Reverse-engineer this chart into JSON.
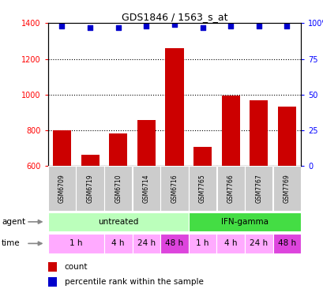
{
  "title": "GDS1846 / 1563_s_at",
  "samples": [
    "GSM6709",
    "GSM6719",
    "GSM6710",
    "GSM6714",
    "GSM6716",
    "GSM7765",
    "GSM7766",
    "GSM7767",
    "GSM7769"
  ],
  "counts": [
    800,
    665,
    785,
    860,
    1262,
    710,
    993,
    970,
    935
  ],
  "percentiles": [
    98,
    97,
    97,
    98,
    99,
    97,
    98,
    98,
    98
  ],
  "ymin": 600,
  "ymax": 1400,
  "y2min": 0,
  "y2max": 100,
  "yticks": [
    600,
    800,
    1000,
    1200,
    1400
  ],
  "y2ticks": [
    0,
    25,
    50,
    75,
    100
  ],
  "bar_color": "#cc0000",
  "dot_color": "#0000cc",
  "agent_untreated_color_light": "#bbffbb",
  "agent_untreated_color": "#bbffbb",
  "agent_ifn_color": "#44dd44",
  "time_color_light": "#ffaaff",
  "time_color_dark": "#dd44dd",
  "sample_label_bg": "#cccccc",
  "gridline_color": "#333333"
}
